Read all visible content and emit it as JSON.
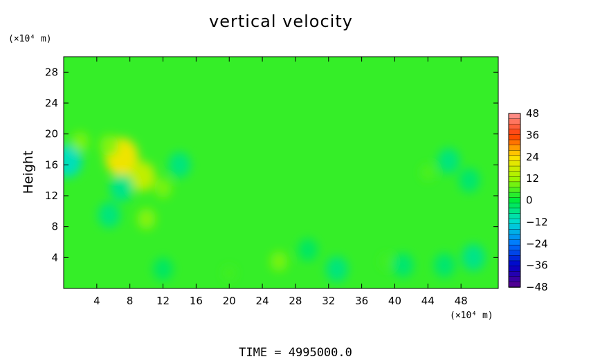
{
  "chart_data": {
    "type": "heatmap",
    "title": "vertical velocity",
    "ylabel": "Height",
    "x_unit": "(×10⁴ m)",
    "y_unit": "(×10⁴ m)",
    "xlim": [
      0,
      52.5
    ],
    "ylim": [
      0,
      30
    ],
    "x_ticks": [
      4,
      8,
      12,
      16,
      20,
      24,
      28,
      32,
      36,
      40,
      44,
      48
    ],
    "y_ticks": [
      4,
      8,
      12,
      16,
      20,
      24,
      28
    ],
    "x_tick_labels": [
      "4",
      "8",
      "12",
      "16",
      "20",
      "24",
      "28",
      "32",
      "36",
      "40",
      "44",
      "48"
    ],
    "y_tick_labels": [
      "4",
      "8",
      "12",
      "16",
      "20",
      "24",
      "28"
    ],
    "colorbar": {
      "min": -48,
      "max": 48,
      "levels": 33,
      "ticks": [
        48,
        36,
        24,
        12,
        0,
        -12,
        -24,
        -36,
        -48
      ],
      "tick_labels": [
        "48",
        "36",
        "24",
        "12",
        "0",
        "−12",
        "−24",
        "−36",
        "−48"
      ]
    },
    "background_value": 4,
    "features": [
      {
        "x": 7,
        "y": 17,
        "value": 22
      },
      {
        "x": 9.5,
        "y": 14.5,
        "value": 16
      },
      {
        "x": 5.5,
        "y": 18.5,
        "value": 10
      },
      {
        "x": 12,
        "y": 13,
        "value": 9
      },
      {
        "x": 10,
        "y": 9,
        "value": 10
      },
      {
        "x": 0.5,
        "y": 16.5,
        "value": -10
      },
      {
        "x": 7,
        "y": 13,
        "value": -6
      },
      {
        "x": 14,
        "y": 16,
        "value": -5
      },
      {
        "x": 5.5,
        "y": 9.5,
        "value": -5
      },
      {
        "x": 2,
        "y": 19,
        "value": 9
      },
      {
        "x": 46.5,
        "y": 16.5,
        "value": -5
      },
      {
        "x": 49,
        "y": 14,
        "value": -4
      },
      {
        "x": 44,
        "y": 15,
        "value": 6
      },
      {
        "x": 26,
        "y": 3.5,
        "value": 9
      },
      {
        "x": 33,
        "y": 2.5,
        "value": -5
      },
      {
        "x": 49.5,
        "y": 4,
        "value": -6
      },
      {
        "x": 46,
        "y": 3,
        "value": -4
      },
      {
        "x": 41,
        "y": 3,
        "value": -4
      },
      {
        "x": 39,
        "y": 3.5,
        "value": 5
      },
      {
        "x": 20,
        "y": 2,
        "value": 5
      },
      {
        "x": 12,
        "y": 2.5,
        "value": -3
      },
      {
        "x": 29.5,
        "y": 5,
        "value": -3
      }
    ]
  },
  "footer": {
    "time_label": "TIME  =  4995000.0"
  },
  "colors": {
    "background": "#ffffff",
    "frame": "#000000"
  }
}
